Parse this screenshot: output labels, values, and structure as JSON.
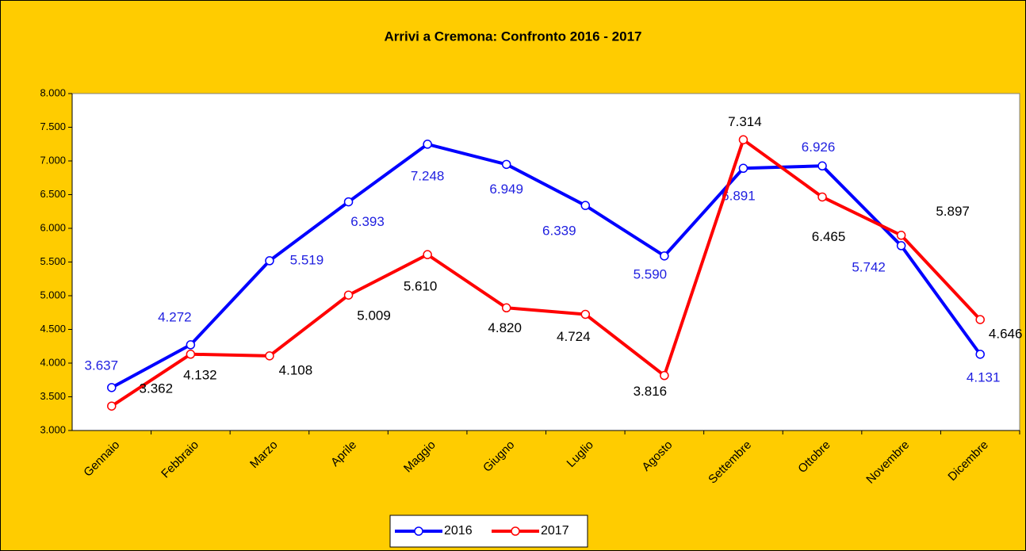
{
  "chart_data": {
    "type": "line",
    "title": "Arrivi a Cremona: Confronto 2016 - 2017",
    "categories": [
      "Gennaio",
      "Febbraio",
      "Marzo",
      "Aprile",
      "Maggio",
      "Giugno",
      "Luglio",
      "Agosto",
      "Settembre",
      "Ottobre",
      "Novembre",
      "Dicembre"
    ],
    "series": [
      {
        "name": "2016",
        "color": "#0000ff",
        "label_color": "#1f1fe0",
        "values": [
          3637,
          4272,
          5519,
          6393,
          7248,
          6949,
          6339,
          5590,
          6891,
          6926,
          5742,
          4131
        ],
        "value_labels": [
          "3.637",
          "4.272",
          "5.519",
          "6.393",
          "7.248",
          "6.949",
          "6.339",
          "5.590",
          "6.891",
          "6.926",
          "5.742",
          "4.131"
        ]
      },
      {
        "name": "2017",
        "color": "#ff0000",
        "label_color": "#000000",
        "values": [
          3362,
          4132,
          4108,
          5009,
          5610,
          4820,
          4724,
          3816,
          7314,
          6465,
          5897,
          4646
        ],
        "value_labels": [
          "3.362",
          "4.132",
          "4.108",
          "5.009",
          "5.610",
          "4.820",
          "4.724",
          "3.816",
          "7.314",
          "6.465",
          "5.897",
          "4.646"
        ]
      }
    ],
    "ylim": [
      3000,
      8000
    ],
    "yticks": [
      {
        "value": 3000,
        "label": "3.000"
      },
      {
        "value": 3500,
        "label": "3.500"
      },
      {
        "value": 4000,
        "label": "4.000"
      },
      {
        "value": 4500,
        "label": "4.500"
      },
      {
        "value": 5000,
        "label": "5.000"
      },
      {
        "value": 5500,
        "label": "5.500"
      },
      {
        "value": 6000,
        "label": "6.000"
      },
      {
        "value": 6500,
        "label": "6.500"
      },
      {
        "value": 7000,
        "label": "7.000"
      },
      {
        "value": 7500,
        "label": "7.500"
      },
      {
        "value": 8000,
        "label": "8.000"
      }
    ],
    "legend": "bottom"
  }
}
